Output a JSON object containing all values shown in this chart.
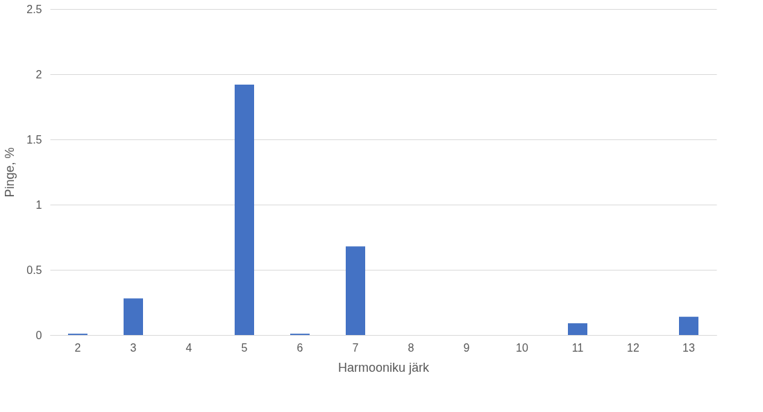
{
  "chart_data": {
    "type": "bar",
    "xlabel": "Harmooniku järk",
    "ylabel": "Pinge, %",
    "categories": [
      "2",
      "3",
      "4",
      "5",
      "6",
      "7",
      "8",
      "9",
      "10",
      "11",
      "12",
      "13"
    ],
    "values": [
      0.01,
      0.28,
      0,
      1.92,
      0.01,
      0.68,
      0,
      0,
      0,
      0.09,
      0,
      0.14
    ],
    "color": "#4472c4",
    "ylim": [
      0,
      2.5
    ],
    "yticks": [
      0,
      0.5,
      1,
      1.5,
      2,
      2.5
    ],
    "grid": "y"
  }
}
